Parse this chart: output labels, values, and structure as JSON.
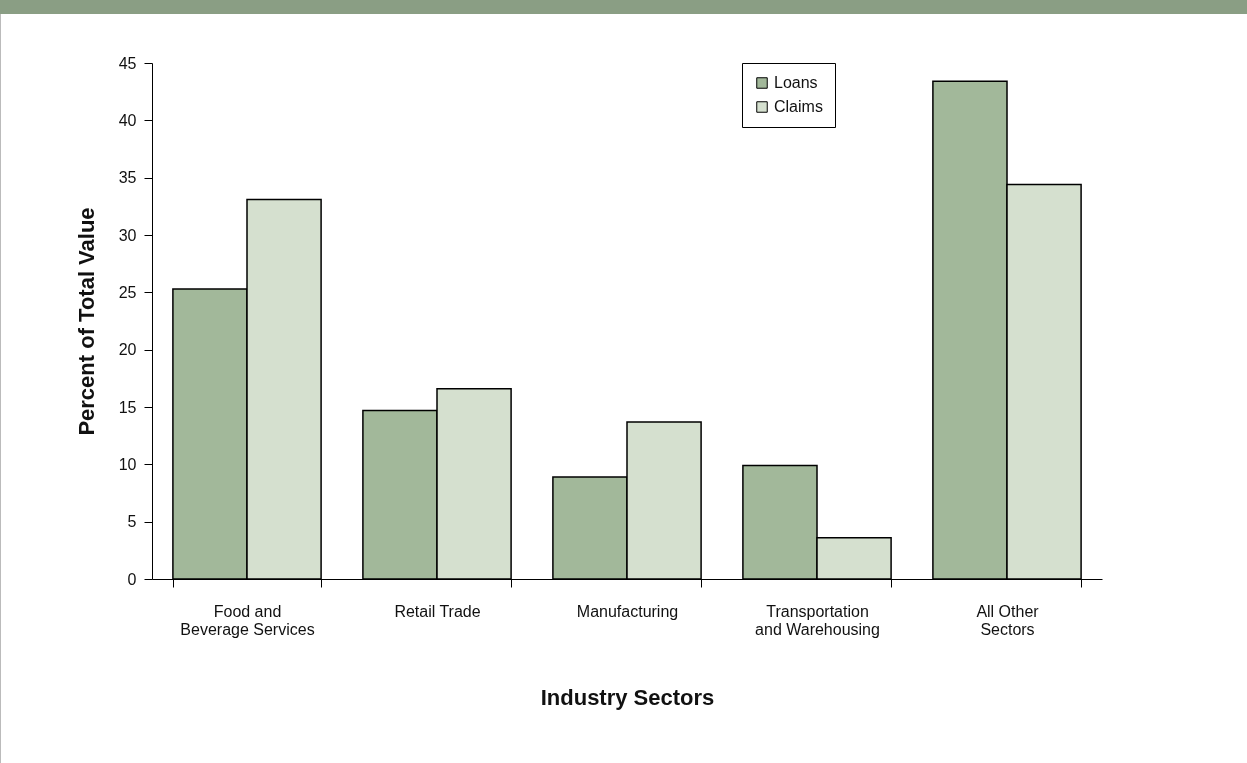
{
  "chart_data": {
    "type": "bar",
    "xlabel": "Industry Sectors",
    "ylabel": "Percent of Total Value",
    "categories": [
      "Food and Beverage Services",
      "Retail Trade",
      "Manufacturing",
      "Transportation and Warehousing",
      "All Other Sectors"
    ],
    "series": [
      {
        "name": "Loans",
        "color": "#a2b89a",
        "values": [
          25.3,
          14.7,
          8.9,
          9.9,
          43.4
        ]
      },
      {
        "name": "Claims",
        "color": "#d5e0cf",
        "values": [
          33.1,
          16.6,
          13.7,
          3.6,
          34.4
        ]
      }
    ],
    "ylim": [
      0,
      45
    ],
    "yticks": [
      0,
      5,
      10,
      15,
      20,
      25,
      30,
      35,
      40,
      45
    ],
    "grid": false,
    "legend": "top right"
  }
}
